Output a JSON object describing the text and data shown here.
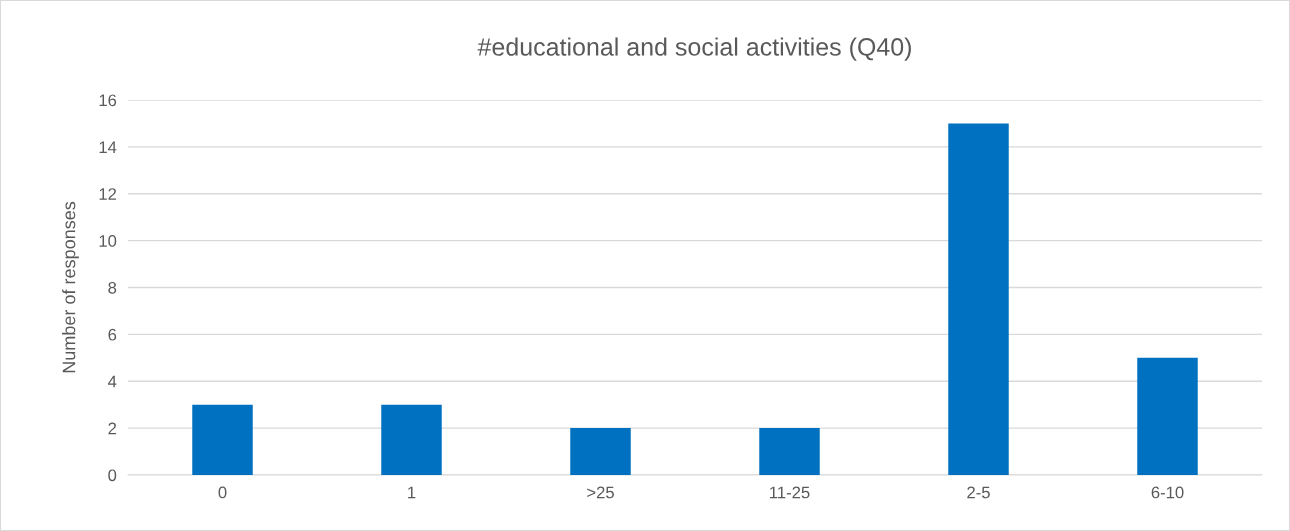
{
  "chart_data": {
    "type": "bar",
    "title": "#educational and social activities (Q40)",
    "ylabel": "Number of responses",
    "categories": [
      "0",
      "1",
      ">25",
      "11-25",
      "2-5",
      "6-10"
    ],
    "values": [
      3,
      3,
      2,
      2,
      15,
      5
    ],
    "color": "#0070c0",
    "ylim": [
      0,
      16
    ],
    "yticks": [
      0,
      2,
      4,
      6,
      8,
      10,
      12,
      14,
      16
    ],
    "grid": "y",
    "legend": false
  }
}
